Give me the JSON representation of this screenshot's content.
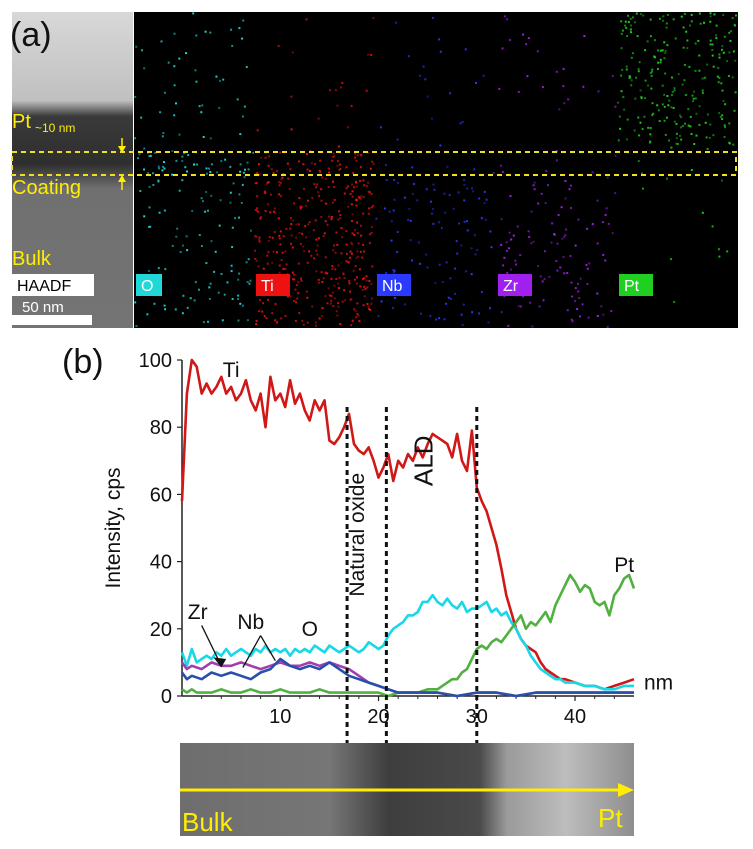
{
  "panel_a": {
    "label": "(a)",
    "overlay_labels": {
      "pt": "Pt",
      "thickness": "~10 nm",
      "coating": "Coating",
      "bulk": "Bulk"
    },
    "scale_bar": "50 nm",
    "maps": [
      {
        "name": "HAADF",
        "color": "#aaaaaa"
      },
      {
        "name": "O",
        "color": "#20d8d8"
      },
      {
        "name": "Ti",
        "color": "#ee1111"
      },
      {
        "name": "Nb",
        "color": "#2a3aff"
      },
      {
        "name": "Zr",
        "color": "#a020f0"
      },
      {
        "name": "Pt",
        "color": "#20d020"
      }
    ],
    "colors": {
      "label_yellow": "#ffee00",
      "dashed_box": "#f0e020"
    }
  },
  "panel_b": {
    "label": "(b)",
    "strip_labels": {
      "left": "Bulk",
      "right": "Pt"
    },
    "strip_color": "#ffee00"
  },
  "chart_data": {
    "type": "line",
    "title": "",
    "xlabel": "nm",
    "ylabel": "Intensity, cps",
    "xlim": [
      0,
      46
    ],
    "ylim": [
      0,
      100
    ],
    "xticks": [
      10,
      20,
      30,
      40
    ],
    "yticks": [
      0,
      20,
      40,
      60,
      80,
      100
    ],
    "grid": false,
    "vlines": [
      16.8,
      20.8,
      30
    ],
    "region_labels": [
      {
        "text": "Natural oxide",
        "x": 18.5,
        "y": 48
      },
      {
        "text": "ALD",
        "x": 25.5,
        "y": 70
      }
    ],
    "series": [
      {
        "name": "Ti",
        "color": "#d01818",
        "x": [
          0,
          0.5,
          1,
          1.5,
          2,
          2.5,
          3,
          3.5,
          4,
          4.5,
          5,
          5.5,
          6,
          6.5,
          7,
          7.5,
          8,
          8.5,
          9,
          9.5,
          10,
          10.5,
          11,
          11.5,
          12,
          12.5,
          13,
          13.5,
          14,
          14.5,
          15,
          15.5,
          16,
          16.5,
          17,
          17.5,
          18,
          18.5,
          19,
          19.5,
          20,
          20.5,
          21,
          21.5,
          22,
          22.5,
          23,
          23.5,
          24,
          24.5,
          25,
          25.5,
          26,
          26.5,
          27,
          27.5,
          28,
          28.5,
          29,
          29.5,
          30,
          30.5,
          31,
          31.5,
          32,
          32.5,
          33,
          33.5,
          34,
          34.5,
          35,
          35.5,
          36,
          36.5,
          37,
          37.5,
          38,
          38.5,
          39,
          40,
          41,
          42,
          43,
          44,
          45,
          46
        ],
        "y": [
          58,
          90,
          100,
          98,
          90,
          93,
          90,
          92,
          95,
          90,
          92,
          88,
          90,
          94,
          88,
          85,
          90,
          80,
          95,
          88,
          90,
          86,
          94,
          87,
          90,
          85,
          82,
          88,
          85,
          88,
          76,
          75,
          77,
          80,
          84,
          75,
          73,
          72,
          74,
          70,
          65,
          68,
          72,
          64,
          70,
          68,
          72,
          70,
          74,
          71,
          75,
          78,
          77,
          76,
          75,
          71,
          78,
          70,
          67,
          79,
          62,
          58,
          55,
          50,
          45,
          38,
          30,
          25,
          20,
          17,
          15,
          14,
          13,
          10,
          8,
          7,
          6,
          5,
          5,
          4,
          3,
          3,
          2,
          3,
          4,
          5
        ]
      },
      {
        "name": "O",
        "color": "#18d8e8",
        "x": [
          0,
          0.5,
          1,
          1.5,
          2,
          2.5,
          3,
          3.5,
          4,
          4.5,
          5,
          5.5,
          6,
          6.5,
          7,
          7.5,
          8,
          8.5,
          9,
          9.5,
          10,
          10.5,
          11,
          11.5,
          12,
          12.5,
          13,
          13.5,
          14,
          14.5,
          15,
          15.5,
          16,
          16.5,
          17,
          17.5,
          18,
          18.5,
          19,
          19.5,
          20,
          20.5,
          21,
          21.5,
          22,
          22.5,
          23,
          23.5,
          24,
          24.5,
          25,
          25.5,
          26,
          26.5,
          27,
          27.5,
          28,
          28.5,
          29,
          29.5,
          30,
          30.5,
          31,
          31.5,
          32,
          32.5,
          33,
          33.5,
          34,
          34.5,
          35,
          35.5,
          36,
          36.5,
          37,
          37.5,
          38,
          38.5,
          39,
          40,
          41,
          42,
          43,
          44,
          45,
          46
        ],
        "y": [
          13,
          9,
          14,
          10,
          11,
          12,
          11,
          13,
          12,
          14,
          12,
          13,
          14,
          13,
          12,
          14,
          13,
          15,
          13,
          14,
          13,
          14,
          12,
          14,
          13,
          14,
          13,
          15,
          14,
          13,
          15,
          14,
          13,
          14,
          15,
          14,
          13,
          14,
          16,
          15,
          14,
          15,
          18,
          20,
          21,
          22,
          24,
          24,
          25,
          28,
          28,
          30,
          28,
          27,
          29,
          27,
          26,
          28,
          25,
          26,
          26,
          27,
          28,
          25,
          26,
          24,
          25,
          22,
          20,
          17,
          15,
          12,
          10,
          8,
          7,
          6,
          5,
          5,
          4,
          4,
          3,
          3,
          2,
          2,
          3,
          3
        ]
      },
      {
        "name": "Pt",
        "color": "#50b040",
        "x": [
          0,
          0.5,
          1,
          1.5,
          2,
          3,
          4,
          5,
          6,
          7,
          8,
          9,
          10,
          11,
          12,
          13,
          14,
          15,
          16,
          17,
          18,
          19,
          20,
          21,
          22,
          23,
          24,
          25,
          26,
          26.5,
          27,
          27.5,
          28,
          28.5,
          29,
          29.5,
          30,
          30.5,
          31,
          31.5,
          32,
          32.5,
          33,
          33.5,
          34,
          34.5,
          35,
          35.5,
          36,
          36.5,
          37,
          37.5,
          38,
          38.5,
          39,
          39.5,
          40,
          40.5,
          41,
          41.5,
          42,
          42.5,
          43,
          43.5,
          44,
          44.5,
          45,
          45.5,
          46
        ],
        "y": [
          2,
          1,
          2,
          1,
          1,
          1,
          2,
          1,
          1,
          2,
          1,
          1,
          2,
          1,
          1,
          1,
          2,
          1,
          1,
          1,
          1,
          1,
          1,
          0,
          1,
          1,
          1,
          2,
          2,
          3,
          4,
          5,
          5,
          7,
          8,
          11,
          14,
          15,
          14,
          16,
          17,
          16,
          18,
          20,
          22,
          24,
          20,
          22,
          21,
          23,
          25,
          22,
          27,
          30,
          33,
          36,
          34,
          31,
          33,
          32,
          28,
          27,
          28,
          24,
          30,
          32,
          35,
          36,
          32
        ]
      },
      {
        "name": "Zr",
        "color": "#a040b0",
        "x": [
          0,
          0.5,
          1,
          2,
          3,
          4,
          5,
          6,
          7,
          8,
          9,
          10,
          11,
          12,
          13,
          14,
          15,
          16,
          17,
          18,
          19,
          20,
          21,
          22,
          23,
          24,
          26,
          28,
          30,
          32,
          34,
          36,
          38,
          40,
          42,
          44,
          46
        ],
        "y": [
          10,
          8,
          9,
          8,
          10,
          9,
          9,
          10,
          9,
          8,
          9,
          10,
          9,
          9,
          10,
          9,
          10,
          9,
          8,
          6,
          4,
          3,
          2,
          1,
          1,
          1,
          1,
          0,
          1,
          1,
          0,
          1,
          1,
          1,
          1,
          1,
          1
        ]
      },
      {
        "name": "Nb",
        "color": "#2850a8",
        "x": [
          0,
          0.5,
          1,
          2,
          3,
          4,
          5,
          6,
          7,
          8,
          9,
          10,
          11,
          12,
          13,
          14,
          15,
          16,
          17,
          18,
          19,
          20,
          21,
          22,
          23,
          24,
          26,
          28,
          30,
          32,
          34,
          36,
          38,
          40,
          42,
          44,
          46
        ],
        "y": [
          7,
          5,
          6,
          5,
          7,
          6,
          7,
          6,
          5,
          7,
          8,
          11,
          9,
          8,
          9,
          8,
          10,
          8,
          6,
          5,
          4,
          3,
          2,
          1,
          1,
          1,
          1,
          0,
          1,
          1,
          0,
          1,
          1,
          1,
          1,
          1,
          1
        ]
      }
    ],
    "annotations": [
      {
        "text": "Ti",
        "x": 5,
        "y": 97
      },
      {
        "text": "Pt",
        "x": 45,
        "y": 39
      },
      {
        "text": "O",
        "x": 13,
        "y": 20
      },
      {
        "text": "Zr",
        "x": 1.6,
        "y": 25
      },
      {
        "text": "Nb",
        "x": 7,
        "y": 22
      },
      {
        "text": "nm",
        "x": 48.5,
        "y": 4
      }
    ]
  }
}
